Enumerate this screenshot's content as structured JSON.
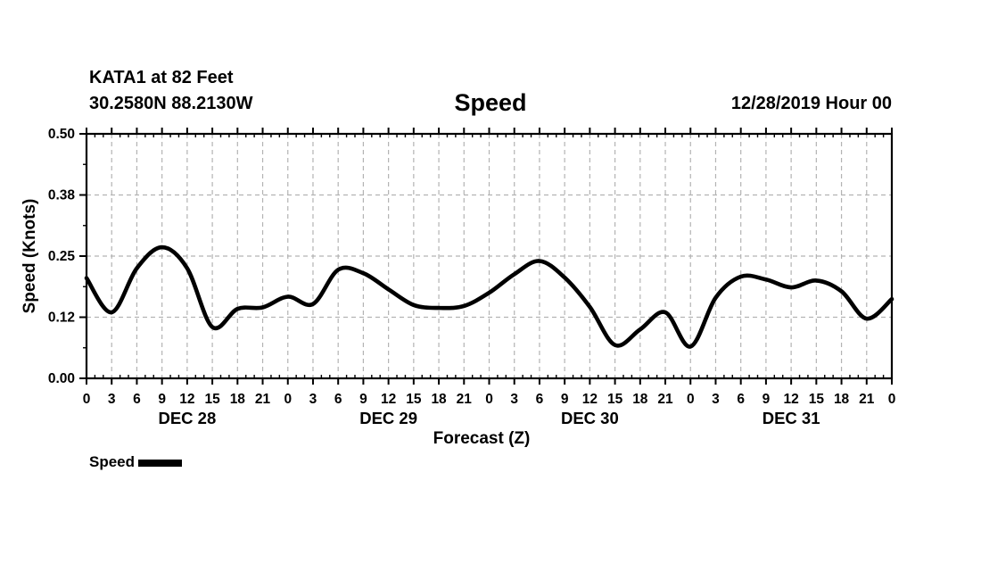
{
  "header": {
    "station_line1": "KATA1 at 82 Feet",
    "station_line2": "30.2580N 88.2130W",
    "title": "Speed",
    "datetime": "12/28/2019 Hour 00"
  },
  "legend": {
    "label": "Speed"
  },
  "chart_data": {
    "type": "line",
    "title": "Speed",
    "xlabel": "Forecast (Z)",
    "ylabel": "Speed (Knots)",
    "ylim": [
      0.0,
      0.5
    ],
    "ytick_values": [
      0.0,
      0.125,
      0.25,
      0.375,
      0.5
    ],
    "ytick_labels": [
      "0.00",
      "0.12",
      "0.25",
      "0.38",
      "0.50"
    ],
    "yminor_values": [
      0.0625,
      0.1875,
      0.3125,
      0.4375
    ],
    "xlim_hours": [
      0,
      96
    ],
    "xtick_step_hours": 3,
    "xminor_step_hours": 1,
    "xtick_labels": [
      "0",
      "3",
      "6",
      "9",
      "12",
      "15",
      "18",
      "21",
      "0",
      "3",
      "6",
      "9",
      "12",
      "15",
      "18",
      "21",
      "0",
      "3",
      "6",
      "9",
      "12",
      "15",
      "18",
      "21",
      "0",
      "3",
      "6",
      "9",
      "12",
      "15",
      "18",
      "21",
      "0"
    ],
    "day_labels": [
      {
        "label": "DEC 28",
        "center_hour": 12
      },
      {
        "label": "DEC 29",
        "center_hour": 36
      },
      {
        "label": "DEC 30",
        "center_hour": 60
      },
      {
        "label": "DEC 31",
        "center_hour": 84
      }
    ],
    "grid": {
      "color": "#b3b3b3",
      "style": "dashed"
    },
    "series": [
      {
        "name": "Speed",
        "color": "#000000",
        "x_hours": [
          0,
          3,
          6,
          9,
          12,
          15,
          18,
          21,
          24,
          27,
          30,
          33,
          36,
          39,
          42,
          45,
          48,
          51,
          54,
          57,
          60,
          63,
          66,
          69,
          72,
          75,
          78,
          81,
          84,
          87,
          90,
          93,
          96
        ],
        "values": [
          0.205,
          0.135,
          0.225,
          0.268,
          0.225,
          0.105,
          0.142,
          0.145,
          0.167,
          0.152,
          0.222,
          0.215,
          0.182,
          0.15,
          0.144,
          0.148,
          0.175,
          0.213,
          0.24,
          0.206,
          0.146,
          0.068,
          0.1,
          0.135,
          0.065,
          0.165,
          0.208,
          0.202,
          0.186,
          0.2,
          0.178,
          0.122,
          0.162
        ]
      }
    ]
  }
}
